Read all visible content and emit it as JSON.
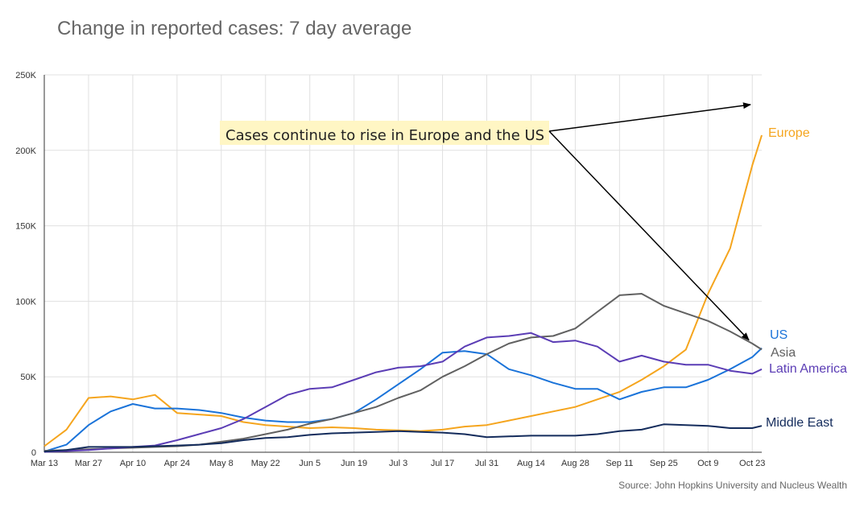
{
  "chart_data": {
    "type": "line",
    "title": "Change in reported cases: 7 day average",
    "xlabel": "",
    "ylabel": "",
    "x_start": "Mar 13",
    "x_end": "Oct 26",
    "x_ticks": [
      "Mar 13",
      "Mar 27",
      "Apr 10",
      "Apr 24",
      "May 8",
      "May 22",
      "Jun 5",
      "Jun 19",
      "Jul 3",
      "Jul 17",
      "Jul 31",
      "Aug 14",
      "Aug 28",
      "Sep 11",
      "Sep 25",
      "Oct 9",
      "Oct 23"
    ],
    "y_ticks": [
      "0",
      "50K",
      "100K",
      "150K",
      "200K",
      "250K"
    ],
    "ylim": [
      0,
      250000
    ],
    "grid": true,
    "annotation": {
      "text": "Cases continue to rise in Europe and the US",
      "targets": [
        "Europe",
        "US"
      ]
    },
    "source": "Source: John Hopkins University and Nucleus Wealth",
    "series": [
      {
        "name": "Europe",
        "color": "#f5a51e",
        "x": [
          "Mar 13",
          "Mar 20",
          "Mar 27",
          "Apr 3",
          "Apr 10",
          "Apr 17",
          "Apr 24",
          "May 1",
          "May 8",
          "May 15",
          "May 22",
          "May 29",
          "Jun 5",
          "Jun 12",
          "Jun 19",
          "Jun 26",
          "Jul 3",
          "Jul 10",
          "Jul 17",
          "Jul 24",
          "Jul 31",
          "Aug 7",
          "Aug 14",
          "Aug 21",
          "Aug 28",
          "Sep 4",
          "Sep 11",
          "Sep 18",
          "Sep 25",
          "Oct 2",
          "Oct 9",
          "Oct 16",
          "Oct 23",
          "Oct 26"
        ],
        "values": [
          4000,
          15000,
          36000,
          37000,
          35000,
          38000,
          26000,
          25000,
          24000,
          20000,
          18000,
          17000,
          16000,
          16500,
          16000,
          15000,
          14500,
          14000,
          15000,
          17000,
          18000,
          21000,
          24000,
          27000,
          30000,
          35000,
          40000,
          48000,
          57000,
          68000,
          105000,
          135000,
          190000,
          210000
        ]
      },
      {
        "name": "US",
        "color": "#1a73d9",
        "x": [
          "Mar 13",
          "Mar 20",
          "Mar 27",
          "Apr 3",
          "Apr 10",
          "Apr 17",
          "Apr 24",
          "May 1",
          "May 8",
          "May 15",
          "May 22",
          "May 29",
          "Jun 5",
          "Jun 12",
          "Jun 19",
          "Jun 26",
          "Jul 3",
          "Jul 10",
          "Jul 17",
          "Jul 24",
          "Jul 31",
          "Aug 7",
          "Aug 14",
          "Aug 21",
          "Aug 28",
          "Sep 4",
          "Sep 11",
          "Sep 18",
          "Sep 25",
          "Oct 2",
          "Oct 9",
          "Oct 16",
          "Oct 23",
          "Oct 26"
        ],
        "values": [
          500,
          5000,
          18000,
          27000,
          32000,
          29000,
          29000,
          28000,
          26000,
          23000,
          21000,
          20000,
          20000,
          22000,
          26000,
          35000,
          45000,
          55000,
          66000,
          67000,
          65000,
          55000,
          51000,
          46000,
          42000,
          42000,
          35000,
          40000,
          43000,
          43000,
          48000,
          55000,
          63000,
          69000
        ]
      },
      {
        "name": "Asia",
        "color": "#616161",
        "x": [
          "Mar 13",
          "Mar 20",
          "Mar 27",
          "Apr 3",
          "Apr 10",
          "Apr 17",
          "Apr 24",
          "May 1",
          "May 8",
          "May 15",
          "May 22",
          "May 29",
          "Jun 5",
          "Jun 12",
          "Jun 19",
          "Jun 26",
          "Jul 3",
          "Jul 10",
          "Jul 17",
          "Jul 24",
          "Jul 31",
          "Aug 7",
          "Aug 14",
          "Aug 21",
          "Aug 28",
          "Sep 4",
          "Sep 11",
          "Sep 18",
          "Sep 25",
          "Oct 2",
          "Oct 9",
          "Oct 16",
          "Oct 23",
          "Oct 26"
        ],
        "values": [
          1000,
          1500,
          2000,
          2500,
          3000,
          3500,
          4000,
          5000,
          7000,
          9000,
          12000,
          15000,
          19000,
          22000,
          26000,
          30000,
          36000,
          41000,
          50000,
          57000,
          65000,
          72000,
          76000,
          77000,
          82000,
          93000,
          104000,
          105000,
          97000,
          92000,
          87000,
          80000,
          72000,
          68000
        ]
      },
      {
        "name": "Latin America",
        "color": "#5b3db5",
        "x": [
          "Mar 13",
          "Mar 20",
          "Mar 27",
          "Apr 3",
          "Apr 10",
          "Apr 17",
          "Apr 24",
          "May 1",
          "May 8",
          "May 15",
          "May 22",
          "May 29",
          "Jun 5",
          "Jun 12",
          "Jun 19",
          "Jun 26",
          "Jul 3",
          "Jul 10",
          "Jul 17",
          "Jul 24",
          "Jul 31",
          "Aug 7",
          "Aug 14",
          "Aug 21",
          "Aug 28",
          "Sep 4",
          "Sep 11",
          "Sep 18",
          "Sep 25",
          "Oct 2",
          "Oct 9",
          "Oct 16",
          "Oct 23",
          "Oct 26"
        ],
        "values": [
          200,
          800,
          1500,
          2500,
          3500,
          4500,
          8000,
          12000,
          16000,
          22000,
          30000,
          38000,
          42000,
          43000,
          48000,
          53000,
          56000,
          57000,
          60000,
          70000,
          76000,
          77000,
          79000,
          73000,
          74000,
          70000,
          60000,
          64000,
          60000,
          58000,
          58000,
          54000,
          52000,
          55000
        ]
      },
      {
        "name": "Middle East",
        "color": "#142c5c",
        "x": [
          "Mar 13",
          "Mar 20",
          "Mar 27",
          "Apr 3",
          "Apr 10",
          "Apr 17",
          "Apr 24",
          "May 1",
          "May 8",
          "May 15",
          "May 22",
          "May 29",
          "Jun 5",
          "Jun 12",
          "Jun 19",
          "Jun 26",
          "Jul 3",
          "Jul 10",
          "Jul 17",
          "Jul 24",
          "Jul 31",
          "Aug 7",
          "Aug 14",
          "Aug 21",
          "Aug 28",
          "Sep 4",
          "Sep 11",
          "Sep 18",
          "Sep 25",
          "Oct 2",
          "Oct 9",
          "Oct 16",
          "Oct 23",
          "Oct 26"
        ],
        "values": [
          500,
          1500,
          3500,
          3500,
          3500,
          4000,
          4500,
          5000,
          6000,
          8000,
          9500,
          10000,
          11500,
          12500,
          13000,
          13500,
          14000,
          13500,
          13000,
          12000,
          10000,
          10500,
          11000,
          11000,
          11000,
          12000,
          14000,
          15000,
          18500,
          18000,
          17500,
          16000,
          16000,
          17500
        ]
      }
    ]
  }
}
